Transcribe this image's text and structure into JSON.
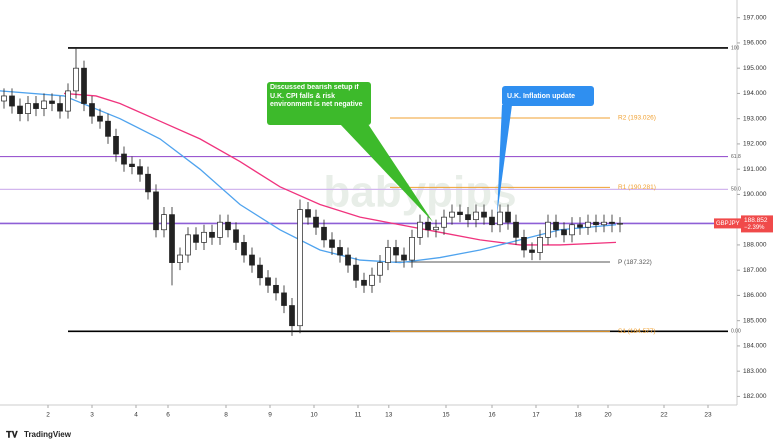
{
  "chart_data": {
    "type": "candlestick",
    "symbol": "GBPJPY",
    "change": "−2.39%",
    "brand": "TradingView",
    "watermark": "babypips",
    "annotations": [
      {
        "text": "Discussed bearish setup if U.K. CPI falls & risk environment is net negative",
        "color": "#3dba2b"
      },
      {
        "text": "U.K. Inflation update",
        "color": "#2f8ff0"
      }
    ],
    "xlim": [
      0,
      92
    ],
    "xticks": [
      {
        "value": 6,
        "label": "2"
      },
      {
        "value": 11.5,
        "label": "3"
      },
      {
        "value": 17,
        "label": "4"
      },
      {
        "value": 21,
        "label": "6"
      },
      {
        "value": 28.25,
        "label": "8"
      },
      {
        "value": 33.75,
        "label": "9"
      },
      {
        "value": 39.25,
        "label": "10"
      },
      {
        "value": 44.75,
        "label": "11"
      },
      {
        "value": 48.6,
        "label": "13"
      },
      {
        "value": 55.75,
        "label": "15"
      },
      {
        "value": 61.5,
        "label": "16"
      },
      {
        "value": 67,
        "label": "17"
      },
      {
        "value": 72.25,
        "label": "18"
      },
      {
        "value": 76,
        "label": "20"
      },
      {
        "value": 83,
        "label": "22"
      },
      {
        "value": 88.5,
        "label": "23"
      }
    ],
    "ylim": [
      181.7,
      197.7
    ],
    "yticks": [
      {
        "value": 197,
        "label": "197.000"
      },
      {
        "value": 196,
        "label": "196.000"
      },
      {
        "value": 195,
        "label": "195.000"
      },
      {
        "value": 194,
        "label": "194.000"
      },
      {
        "value": 193,
        "label": "193.000"
      },
      {
        "value": 192,
        "label": "192.000"
      },
      {
        "value": 191,
        "label": "191.000"
      },
      {
        "value": 190,
        "label": "190.000"
      },
      {
        "value": 189,
        "label": "189.000"
      },
      {
        "value": 188,
        "label": "188.000"
      },
      {
        "value": 187,
        "label": "187.000"
      },
      {
        "value": 186,
        "label": "186.000"
      },
      {
        "value": 185,
        "label": "185.000"
      },
      {
        "value": 184,
        "label": "184.000"
      },
      {
        "value": 183,
        "label": "183.000"
      },
      {
        "value": 182,
        "label": "182.000"
      }
    ],
    "open": [
      193.7,
      193.9,
      193.5,
      193.2,
      193.6,
      193.4,
      193.7,
      193.6,
      193.3,
      194.1,
      195.0,
      193.6,
      193.1,
      192.9,
      192.3,
      191.6,
      191.2,
      191.1,
      190.8,
      190.1,
      188.6,
      189.2,
      187.3,
      187.6,
      188.4,
      188.1,
      188.5,
      188.3,
      188.9,
      188.6,
      188.1,
      187.6,
      187.2,
      186.7,
      186.4,
      186.1,
      185.6,
      184.8,
      189.4,
      189.1,
      188.7,
      188.2,
      187.9,
      187.6,
      187.2,
      186.6,
      186.4,
      186.8,
      187.3,
      187.9,
      187.6,
      187.4,
      188.3,
      188.9,
      188.6,
      188.7,
      189.1,
      189.3,
      189.2,
      189.0,
      189.3,
      189.1,
      188.8,
      189.3,
      188.9,
      188.3,
      187.8,
      187.7,
      188.3,
      188.9,
      188.6,
      188.4,
      188.8,
      188.7,
      188.9,
      188.8,
      188.9,
      188.85
    ],
    "high": [
      194.2,
      194.2,
      193.8,
      193.9,
      193.9,
      194.0,
      194.0,
      193.9,
      194.4,
      195.8,
      195.3,
      193.9,
      193.4,
      193.2,
      192.6,
      191.9,
      191.5,
      191.4,
      191.1,
      190.4,
      189.5,
      189.5,
      187.9,
      188.7,
      188.7,
      188.8,
      188.8,
      189.2,
      189.2,
      188.9,
      188.4,
      187.9,
      187.5,
      187.0,
      186.7,
      186.4,
      185.9,
      189.8,
      189.7,
      189.4,
      189.0,
      188.5,
      188.2,
      187.9,
      187.5,
      186.9,
      187.1,
      187.6,
      188.2,
      188.2,
      187.9,
      188.6,
      189.2,
      189.2,
      189.0,
      189.4,
      189.6,
      189.6,
      189.5,
      189.6,
      189.6,
      189.4,
      189.6,
      189.6,
      189.2,
      188.6,
      188.1,
      188.6,
      189.2,
      189.2,
      188.9,
      189.1,
      189.1,
      189.2,
      189.2,
      189.2,
      189.2,
      189.1
    ],
    "low": [
      193.4,
      193.2,
      192.9,
      192.9,
      193.1,
      193.1,
      193.3,
      193.0,
      193.0,
      193.8,
      193.3,
      192.8,
      192.6,
      192.0,
      191.3,
      190.9,
      190.8,
      190.5,
      189.8,
      188.3,
      188.3,
      186.4,
      187.0,
      187.3,
      187.8,
      187.8,
      188.0,
      188.0,
      188.3,
      187.8,
      187.3,
      186.9,
      186.4,
      186.1,
      185.8,
      185.3,
      184.4,
      184.5,
      188.8,
      188.4,
      187.9,
      187.6,
      187.3,
      186.9,
      186.3,
      186.1,
      186.1,
      186.5,
      187.0,
      187.3,
      187.1,
      187.1,
      188.0,
      188.3,
      188.3,
      188.4,
      188.8,
      188.9,
      188.7,
      188.7,
      188.8,
      188.5,
      188.5,
      188.6,
      188.0,
      187.5,
      187.4,
      187.4,
      188.0,
      188.3,
      188.1,
      188.1,
      188.4,
      188.4,
      188.5,
      188.5,
      188.5,
      188.5
    ],
    "close": [
      193.9,
      193.5,
      193.2,
      193.6,
      193.4,
      193.7,
      193.6,
      193.3,
      194.1,
      195.0,
      193.6,
      193.1,
      192.9,
      192.3,
      191.6,
      191.2,
      191.1,
      190.8,
      190.1,
      188.6,
      189.2,
      187.3,
      187.6,
      188.4,
      188.1,
      188.5,
      188.3,
      188.9,
      188.6,
      188.1,
      187.6,
      187.2,
      186.7,
      186.4,
      186.1,
      185.6,
      184.8,
      189.4,
      189.1,
      188.7,
      188.2,
      187.9,
      187.6,
      187.2,
      186.6,
      186.4,
      186.8,
      187.3,
      187.9,
      187.6,
      187.4,
      188.3,
      188.9,
      188.6,
      188.7,
      189.1,
      189.3,
      189.2,
      189.0,
      189.3,
      189.1,
      188.8,
      189.3,
      188.9,
      188.3,
      187.8,
      187.7,
      188.3,
      188.9,
      188.6,
      188.4,
      188.8,
      188.7,
      188.9,
      188.8,
      188.9,
      188.85,
      188.852
    ],
    "up_color": "#ffffff",
    "down_color": "#222222",
    "series": [
      {
        "color": "#f0347e",
        "x": [
          8,
          12,
          15,
          20,
          25,
          30,
          35,
          40,
          45,
          50,
          55,
          60,
          65,
          70,
          77
        ],
        "values": [
          194.0,
          193.9,
          193.6,
          192.9,
          192.2,
          191.3,
          190.3,
          189.6,
          189.1,
          188.8,
          188.5,
          188.2,
          188.0,
          188.0,
          188.1
        ]
      },
      {
        "color": "#4fa3ee",
        "x": [
          0,
          8,
          15,
          20,
          25,
          30,
          35,
          40,
          45,
          50,
          55,
          60,
          65,
          70,
          77
        ],
        "values": [
          194.1,
          193.9,
          193.0,
          192.2,
          191.0,
          189.6,
          188.6,
          187.8,
          187.4,
          187.3,
          187.5,
          187.8,
          188.2,
          188.6,
          188.8
        ]
      }
    ],
    "levels": [
      {
        "value": 195.8,
        "label": "100",
        "color": "#000000",
        "start": 8.5
      },
      {
        "value": 191.5,
        "label": "61.8",
        "color": "#9b59d0",
        "start": 0
      },
      {
        "value": 190.2,
        "label": "50.0",
        "color": "#d2b6ee",
        "start": 0
      },
      {
        "value": 184.577,
        "label": "0.00",
        "color": "#000000",
        "start": 8.5
      }
    ],
    "pivots": [
      {
        "value": 193.026,
        "label": "R2 (193.026)",
        "color": "#f0a030"
      },
      {
        "value": 190.281,
        "label": "R1 (190.281)",
        "color": "#f0a030"
      },
      {
        "value": 187.322,
        "label": "P (187.322)",
        "color": "#555555"
      },
      {
        "value": 184.577,
        "label": "S1 (184.577)",
        "color": "#f0a030"
      }
    ],
    "pivot_start": 48.75,
    "pivot_end": 76.25
  }
}
